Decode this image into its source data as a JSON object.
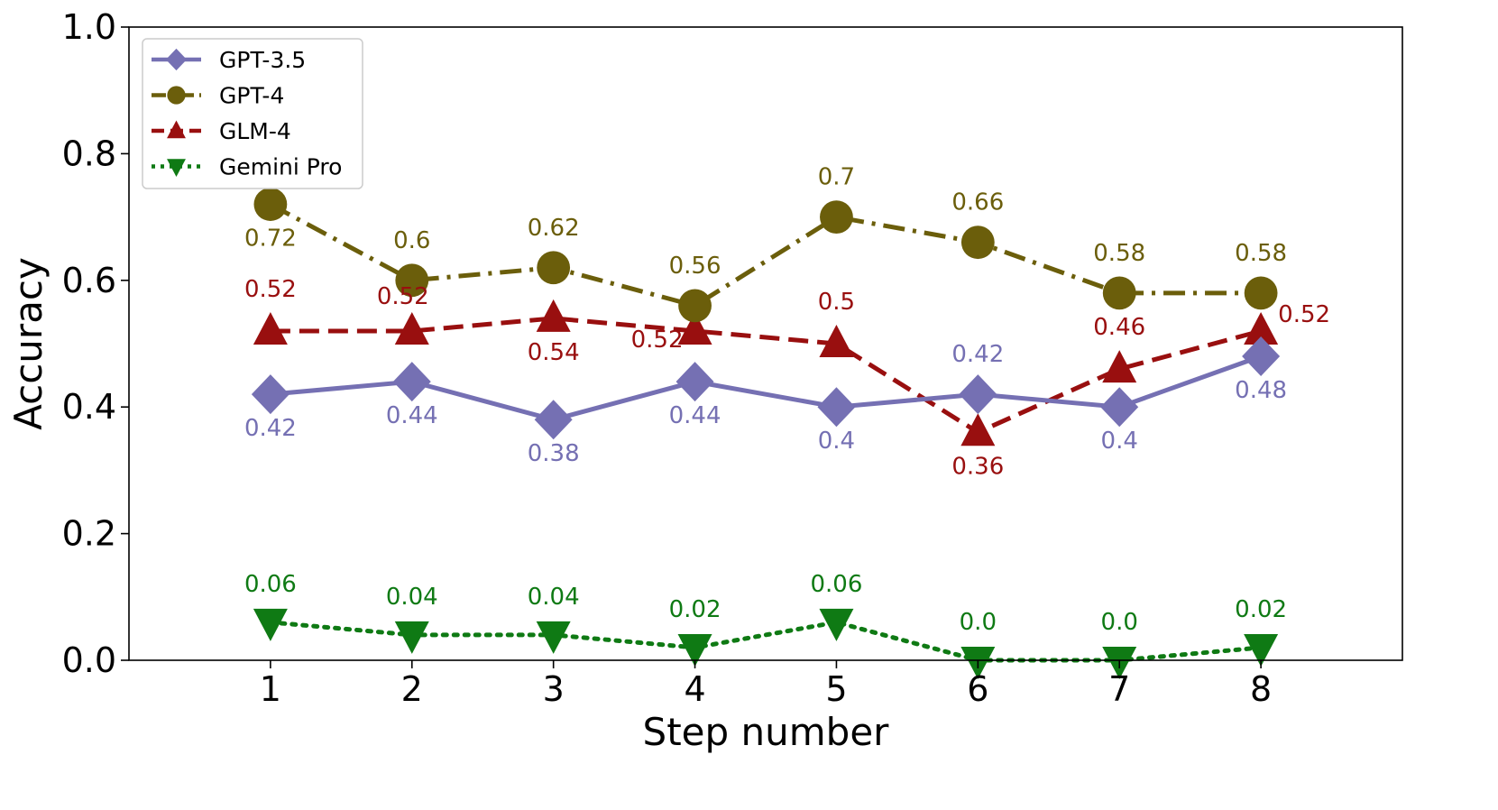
{
  "chart_data": {
    "type": "line",
    "xlabel": "Step number",
    "ylabel": "Accuracy",
    "x": [
      1,
      2,
      3,
      4,
      5,
      6,
      7,
      8
    ],
    "xlim": [
      0,
      9
    ],
    "ylim": [
      0,
      1.0
    ],
    "yticks": [
      "0.0",
      "0.2",
      "0.4",
      "0.6",
      "0.8",
      "1.0"
    ],
    "xticks": [
      "1",
      "2",
      "3",
      "4",
      "5",
      "6",
      "7",
      "8"
    ],
    "grid": false,
    "legend_position": "top-left",
    "series": [
      {
        "name": "GPT-3.5",
        "color": "#7570b3",
        "marker": "diamond",
        "line_style": "solid",
        "values": [
          0.42,
          0.44,
          0.38,
          0.44,
          0.4,
          0.42,
          0.4,
          0.48
        ],
        "labels": [
          "0.42",
          "0.44",
          "0.38",
          "0.44",
          "0.4",
          "0.42",
          "0.4",
          "0.48"
        ]
      },
      {
        "name": "GPT-4",
        "color": "#6b5e0b",
        "marker": "circle",
        "line_style": "dashdot",
        "values": [
          0.72,
          0.6,
          0.62,
          0.56,
          0.7,
          0.66,
          0.58,
          0.58
        ],
        "labels": [
          "0.72",
          "0.6",
          "0.62",
          "0.56",
          "0.7",
          "0.66",
          "0.58",
          "0.58"
        ]
      },
      {
        "name": "GLM-4",
        "color": "#990f0f",
        "marker": "triangle-up",
        "line_style": "dashed",
        "values": [
          0.52,
          0.52,
          0.54,
          0.52,
          0.5,
          0.36,
          0.46,
          0.52
        ],
        "labels": [
          "0.52",
          "0.52",
          "0.54",
          "0.52",
          "0.5",
          "0.36",
          "0.46",
          "0.52"
        ]
      },
      {
        "name": "Gemini Pro",
        "color": "#0f7a14",
        "marker": "triangle-down",
        "line_style": "dotted",
        "values": [
          0.06,
          0.04,
          0.04,
          0.02,
          0.06,
          0.0,
          0.0,
          0.02
        ],
        "labels": [
          "0.06",
          "0.04",
          "0.04",
          "0.02",
          "0.06",
          "0.0",
          "0.0",
          "0.02"
        ]
      }
    ]
  }
}
